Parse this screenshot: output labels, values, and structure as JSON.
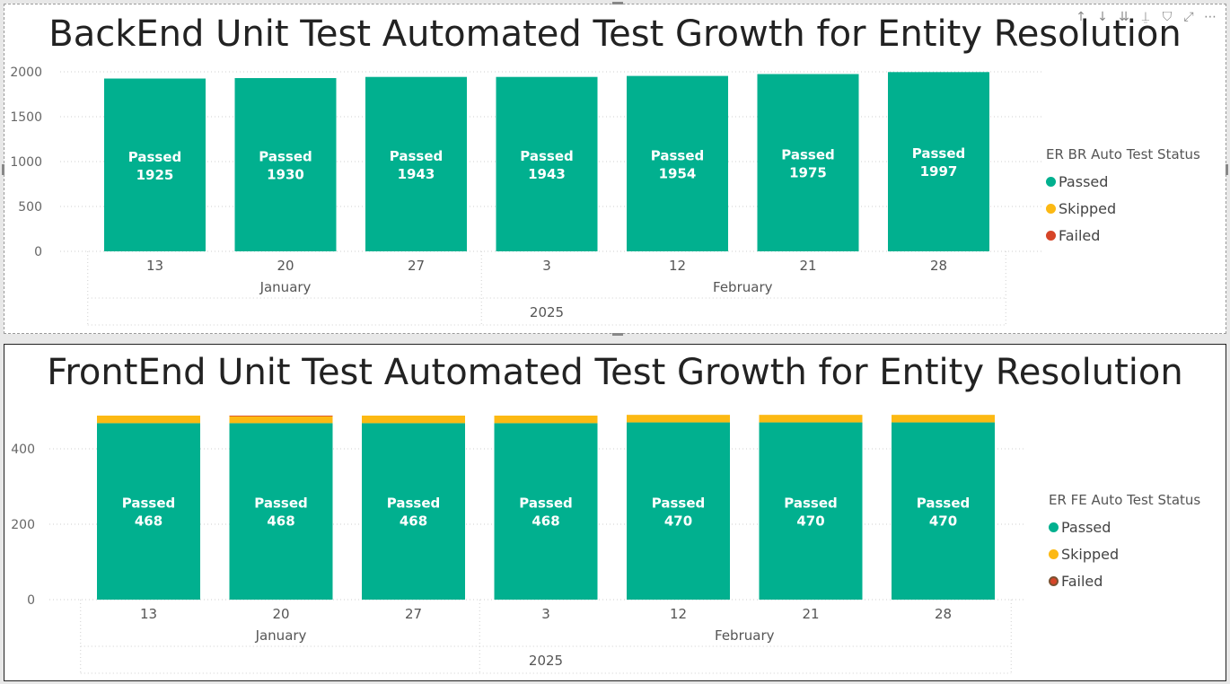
{
  "colors": {
    "passed": "#01b08f",
    "skipped": "#fcb913",
    "failed": "#d64528",
    "failed_fe_ring": "#7a5232"
  },
  "toolbar": [
    {
      "icon": "arrow-up-icon",
      "glyph": "↑"
    },
    {
      "icon": "arrow-down-icon",
      "glyph": "↓"
    },
    {
      "icon": "double-arrow-down-icon",
      "glyph": "⇊"
    },
    {
      "icon": "expand-hierarchy-icon",
      "glyph": "⍊"
    },
    {
      "icon": "filter-icon",
      "glyph": "⛉"
    },
    {
      "icon": "focus-mode-icon",
      "glyph": "⤢"
    },
    {
      "icon": "more-options-icon",
      "glyph": "⋯"
    }
  ],
  "chart_data": [
    {
      "type": "bar",
      "title": "BackEnd Unit Test Automated Test Growth for Entity Resolution",
      "categories": [
        "13",
        "20",
        "27",
        "3",
        "12",
        "21",
        "28"
      ],
      "months": [
        {
          "label": "January",
          "span": [
            0,
            2
          ]
        },
        {
          "label": "February",
          "span": [
            3,
            6
          ]
        }
      ],
      "year": "2025",
      "series": [
        {
          "name": "Passed",
          "values": [
            1925,
            1930,
            1943,
            1943,
            1954,
            1975,
            1997
          ]
        },
        {
          "name": "Skipped",
          "values": [
            0,
            0,
            0,
            0,
            0,
            0,
            0
          ]
        },
        {
          "name": "Failed",
          "values": [
            0,
            0,
            0,
            0,
            0,
            0,
            0
          ]
        }
      ],
      "bar_label_prefix": "Passed",
      "yticks": [
        0,
        500,
        1000,
        1500,
        2000
      ],
      "ylim": [
        0,
        2000
      ],
      "legend": {
        "title": "ER BR Auto Test Status",
        "entries": [
          "Passed",
          "Skipped",
          "Failed"
        ],
        "position": "right"
      },
      "grid": true
    },
    {
      "type": "bar",
      "title": "FrontEnd Unit Test Automated Test Growth for Entity Resolution",
      "categories": [
        "13",
        "20",
        "27",
        "3",
        "12",
        "21",
        "28"
      ],
      "months": [
        {
          "label": "January",
          "span": [
            0,
            2
          ]
        },
        {
          "label": "February",
          "span": [
            3,
            6
          ]
        }
      ],
      "year": "2025",
      "series": [
        {
          "name": "Passed",
          "values": [
            468,
            468,
            468,
            468,
            470,
            470,
            470
          ]
        },
        {
          "name": "Skipped",
          "values": [
            20,
            19,
            20,
            20,
            20,
            20,
            20
          ]
        },
        {
          "name": "Failed",
          "values": [
            0,
            1,
            0,
            0,
            0,
            0,
            0
          ]
        }
      ],
      "bar_label_prefix": "Passed",
      "yticks": [
        0,
        200,
        400
      ],
      "ylim": [
        0,
        488
      ],
      "legend": {
        "title": "ER FE Auto Test Status",
        "entries": [
          "Passed",
          "Skipped",
          "Failed"
        ],
        "position": "right"
      },
      "grid": true
    }
  ]
}
